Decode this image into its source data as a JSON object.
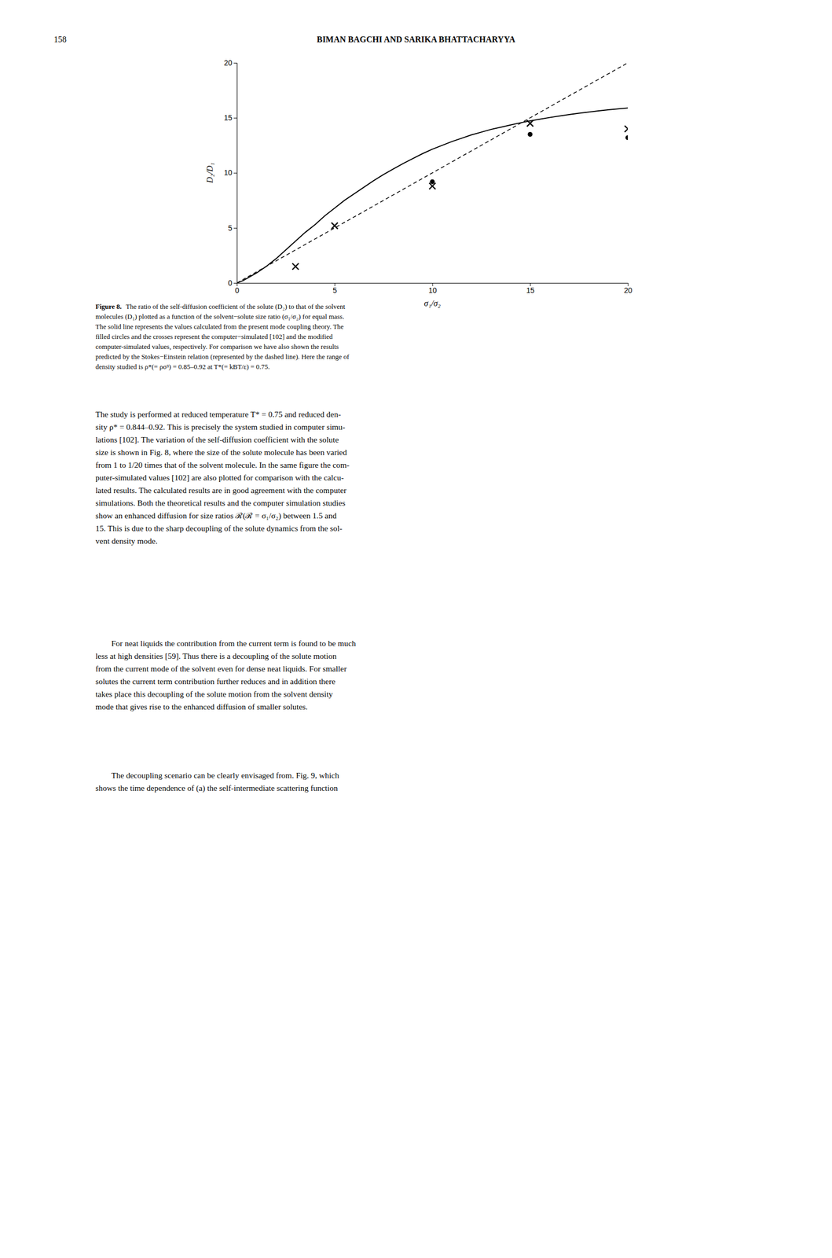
{
  "page": {
    "page_number": "158",
    "header": "BIMAN BAGCHI AND SARIKA BHATTACHARYYA",
    "caption_label": "Figure 8.",
    "caption_lines": [
      "The ratio of the self-diffusion coefficient of the solute (D₂) to that of the solvent",
      "molecules (D₁) plotted as a function of the solvent−solute size ratio (σ₁/σ₂) for equal mass.",
      "The solid line represents the values calculated from the present mode coupling theory. The",
      "filled circles and the crosses represent the computer−simulated [102] and the modified",
      "computer-simulated values, respectively. For comparison we have also shown the results",
      "predicted by the Stokes−Einstein relation (represented by the dashed line). Here the range of",
      "density studied is ρ*(= ρσ³) = 0.85–0.92 at T*(= kBT/ε) = 0.75."
    ],
    "body": [
      [
        "The study is performed at reduced temperature T* = 0.75 and reduced den-",
        "sity ρ* = 0.844–0.92. This is precisely the system studied in computer simu-",
        "lations [102]. The variation of the self-diffusion coefficient with the solute",
        "size is shown in Fig. 8, where the size of the solute molecule has been varied",
        "from 1 to 1/20 times that of the solvent molecule. In the same figure the com-",
        "puter-simulated values [102] are also plotted for comparison with the calcu-",
        "lated results. The calculated results are in good agreement with the computer",
        "simulations. Both the theoretical results and the computer simulation studies",
        "show an enhanced diffusion for size ratios ℛ(ℛ = σ₁/σ₂) between 1.5 and",
        "15. This is due to the sharp decoupling of the solute dynamics from the sol-",
        "vent density mode."
      ],
      [
        "For neat liquids the contribution from the current term is found to be much",
        "less at high densities [59]. Thus there is a decoupling of the solute motion",
        "from the current mode of the solvent even for dense neat liquids. For smaller",
        "solutes the current term contribution further reduces and in addition there",
        "takes place this decoupling of the solute motion from the solvent density",
        "mode that gives rise to the enhanced diffusion of smaller solutes."
      ],
      [
        "The decoupling scenario can be clearly envisaged from. Fig. 9, which",
        "shows the time dependence of (a) the self-intermediate scattering function"
      ]
    ]
  },
  "chart_data": {
    "type": "line",
    "xlabel": "σ₁/σ₂",
    "ylabel": "D₂/D₁",
    "xlim": [
      0,
      20
    ],
    "ylim": [
      0,
      20
    ],
    "xticks": [
      0,
      5,
      10,
      15,
      20
    ],
    "yticks": [
      0,
      5,
      10,
      15,
      20
    ],
    "series": [
      {
        "type": "line",
        "line_style": "solid",
        "color": "#000000",
        "x": [
          0.0,
          0.3,
          0.6,
          1.0,
          1.5,
          2.0,
          2.5,
          3.0,
          3.5,
          4.0,
          4.5,
          5.0,
          5.5,
          6.0,
          6.5,
          7.0,
          7.5,
          8.0,
          8.5,
          9.0,
          9.5,
          10.0,
          10.5,
          11.0,
          11.5,
          12.0,
          12.5,
          13.0,
          13.5,
          14.0,
          14.5,
          15.0,
          15.5,
          16.0,
          16.5,
          17.0,
          17.5,
          18.0,
          18.5,
          19.0,
          19.5,
          20.0
        ],
        "values": [
          0.0,
          0.2,
          0.5,
          0.9,
          1.5,
          2.2,
          3.0,
          3.8,
          4.6,
          5.3,
          6.1,
          6.8,
          7.5,
          8.1,
          8.7,
          9.3,
          9.85,
          10.35,
          10.85,
          11.3,
          11.75,
          12.15,
          12.5,
          12.85,
          13.15,
          13.45,
          13.7,
          13.95,
          14.15,
          14.35,
          14.55,
          14.72,
          14.88,
          15.03,
          15.17,
          15.3,
          15.42,
          15.53,
          15.63,
          15.73,
          15.82,
          15.9
        ]
      },
      {
        "type": "line",
        "line_style": "dashed",
        "color": "#000000",
        "x": [
          0.0,
          20.0
        ],
        "values": [
          0.0,
          20.0
        ]
      },
      {
        "type": "scatter",
        "marker": "circle",
        "color": "#000000",
        "x": [
          10.0,
          15.0,
          20.0
        ],
        "values": [
          9.2,
          13.5,
          13.2
        ]
      },
      {
        "type": "scatter",
        "marker": "cross",
        "color": "#000000",
        "x": [
          3.0,
          5.0,
          10.0,
          15.0,
          20.0
        ],
        "values": [
          1.5,
          5.2,
          8.8,
          14.5,
          14.0
        ]
      }
    ]
  }
}
